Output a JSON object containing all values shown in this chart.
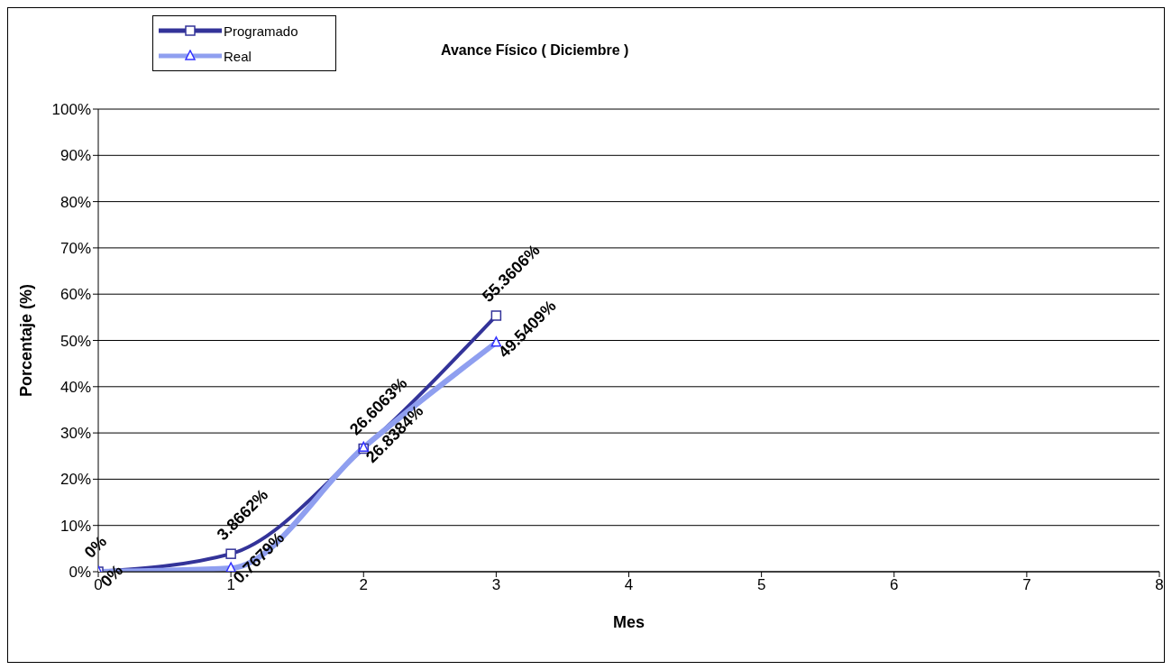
{
  "chart_data": {
    "type": "line",
    "title": "Avance Físico ( Diciembre )",
    "xlabel": "Mes",
    "ylabel": "Porcentaje (%)",
    "x": [
      0,
      1,
      2,
      3
    ],
    "series": [
      {
        "name": "Programado",
        "color": "#333399",
        "marker": "square",
        "values": [
          0,
          3.8662,
          26.6063,
          55.3606
        ],
        "value_labels": [
          "0%",
          "3.8662%",
          "26.6063%",
          "55.3606%"
        ]
      },
      {
        "name": "Real",
        "color": "#8f9ff0",
        "marker": "triangle",
        "values": [
          0,
          0.7679,
          26.8384,
          49.5409
        ],
        "value_labels": [
          "0%",
          "0.7679%",
          "26.8384%",
          "49.5409%"
        ]
      }
    ],
    "xlim": [
      0,
      8
    ],
    "xticks": [
      0,
      1,
      2,
      3,
      4,
      5,
      6,
      7,
      8
    ],
    "ylim": [
      0,
      100
    ],
    "yticks": [
      {
        "value": 0,
        "label": "0%"
      },
      {
        "value": 10,
        "label": "10%"
      },
      {
        "value": 20,
        "label": "20%"
      },
      {
        "value": 30,
        "label": "30%"
      },
      {
        "value": 40,
        "label": "40%"
      },
      {
        "value": 50,
        "label": "50%"
      },
      {
        "value": 60,
        "label": "60%"
      },
      {
        "value": 70,
        "label": "70%"
      },
      {
        "value": 80,
        "label": "80%"
      },
      {
        "value": 90,
        "label": "90%"
      },
      {
        "value": 100,
        "label": "100%"
      }
    ],
    "grid": "y",
    "legend": "top left"
  }
}
